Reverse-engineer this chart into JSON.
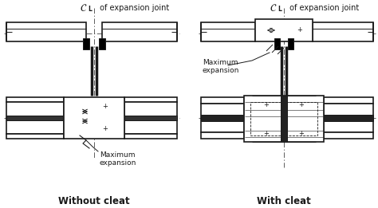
{
  "title_left": "Without cleat",
  "title_right": "With cleat",
  "label_cl_left": " of expansion joint",
  "label_cl_right": " of expansion joint",
  "label_max_exp_left": "Maximum\nexpansion",
  "label_max_exp_right": "Maximum\nexpansion",
  "bg_color": "#ffffff",
  "line_color": "#1a1a1a",
  "cl_color": "#444444",
  "font_size_title": 8.5,
  "font_size_label": 6.5,
  "font_size_cl": 7.0
}
